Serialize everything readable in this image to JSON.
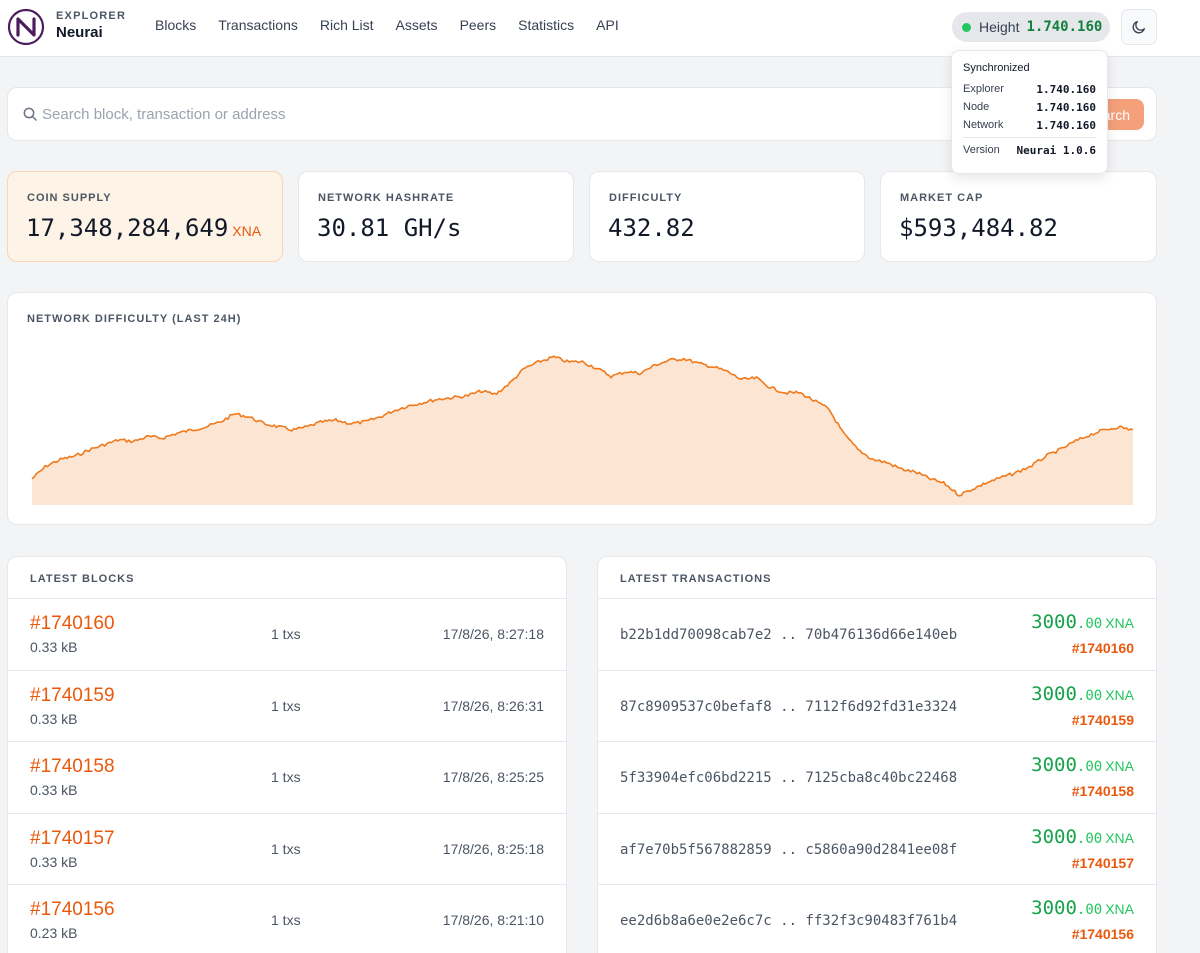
{
  "header": {
    "brand_sub": "EXPLORER",
    "brand_name": "Neurai",
    "nav": [
      "Blocks",
      "Transactions",
      "Rich List",
      "Assets",
      "Peers",
      "Statistics",
      "API"
    ],
    "height_label": "Height",
    "height_value": "1.740.160",
    "theme_icon": "moon-icon"
  },
  "search": {
    "placeholder": "Search block, transaction or address",
    "button_label": "Search"
  },
  "sync_popover": {
    "title": "Synchronized",
    "rows": [
      {
        "label": "Explorer",
        "value": "1.740.160"
      },
      {
        "label": "Node",
        "value": "1.740.160"
      },
      {
        "label": "Network",
        "value": "1.740.160"
      }
    ],
    "version_label": "Version",
    "version_value": "Neurai 1.0.6"
  },
  "stats": [
    {
      "label": "COIN SUPPLY",
      "value": "17,348,284,649",
      "unit": "XNA"
    },
    {
      "label": "NETWORK HASHRATE",
      "value": "30.81 GH/s",
      "unit": ""
    },
    {
      "label": "DIFFICULTY",
      "value": "432.82",
      "unit": ""
    },
    {
      "label": "MARKET CAP",
      "value": "$593,484.82",
      "unit": ""
    }
  ],
  "chart_data": {
    "type": "area",
    "title": "NETWORK DIFFICULTY (LAST 24H)",
    "xlabel": "",
    "ylabel": "",
    "grid": false,
    "legend": "none",
    "line_color": "#f07a1c",
    "fill_color": "#fde5d4",
    "series": [
      {
        "values": [
          10,
          18,
          22,
          24,
          28,
          31,
          34,
          33,
          36,
          35,
          38,
          40,
          42,
          45,
          50,
          48,
          44,
          42,
          40,
          42,
          45,
          46,
          44,
          45,
          48,
          52,
          55,
          57,
          59,
          60,
          61,
          64,
          62,
          69,
          78,
          82,
          85,
          82,
          82,
          78,
          73,
          76,
          75,
          80,
          83,
          84,
          81,
          79,
          76,
          71,
          72,
          66,
          63,
          63,
          58,
          53,
          38,
          28,
          22,
          20,
          16,
          14,
          10,
          7,
          0,
          4,
          8,
          11,
          14,
          18,
          24,
          28,
          33,
          37,
          40,
          42,
          40
        ]
      }
    ]
  },
  "latest_blocks": {
    "title": "LATEST BLOCKS",
    "rows": [
      {
        "number": "#1740160",
        "size": "0.33 kB",
        "txs": "1 txs",
        "time": "17/8/26, 8:27:18"
      },
      {
        "number": "#1740159",
        "size": "0.33 kB",
        "txs": "1 txs",
        "time": "17/8/26, 8:26:31"
      },
      {
        "number": "#1740158",
        "size": "0.33 kB",
        "txs": "1 txs",
        "time": "17/8/26, 8:25:25"
      },
      {
        "number": "#1740157",
        "size": "0.33 kB",
        "txs": "1 txs",
        "time": "17/8/26, 8:25:18"
      },
      {
        "number": "#1740156",
        "size": "0.23 kB",
        "txs": "1 txs",
        "time": "17/8/26, 8:21:10"
      }
    ]
  },
  "latest_transactions": {
    "title": "LATEST TRANSACTIONS",
    "rows": [
      {
        "hash": "b22b1dd70098cab7e2 .. 70b476136d66e140eb",
        "amount_int": "3000",
        "amount_dec": ".00",
        "currency": "XNA",
        "block": "#1740160"
      },
      {
        "hash": "87c8909537c0befaf8 .. 7112f6d92fd31e3324",
        "amount_int": "3000",
        "amount_dec": ".00",
        "currency": "XNA",
        "block": "#1740159"
      },
      {
        "hash": "5f33904efc06bd2215 .. 7125cba8c40bc22468",
        "amount_int": "3000",
        "amount_dec": ".00",
        "currency": "XNA",
        "block": "#1740158"
      },
      {
        "hash": "af7e70b5f567882859 .. c5860a90d2841ee08f",
        "amount_int": "3000",
        "amount_dec": ".00",
        "currency": "XNA",
        "block": "#1740157"
      },
      {
        "hash": "ee2d6b8a6e0e2e6c7c .. ff32f3c90483f761b4",
        "amount_int": "3000",
        "amount_dec": ".00",
        "currency": "XNA",
        "block": "#1740156"
      }
    ]
  }
}
